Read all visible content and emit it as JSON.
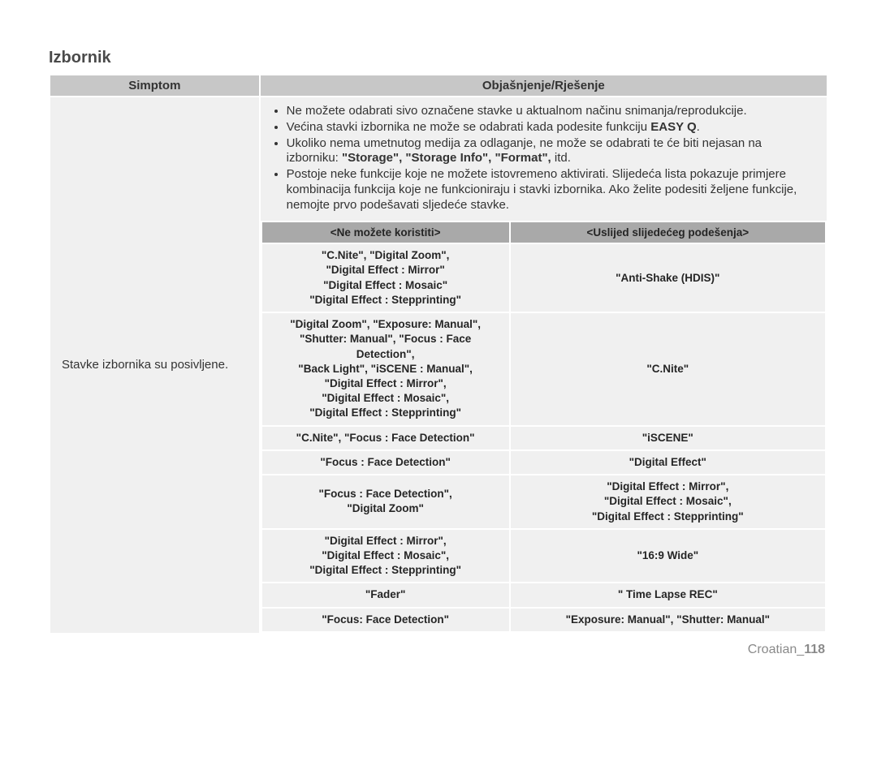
{
  "section_title": "Izbornik",
  "outer_headers": {
    "symptom": "Simptom",
    "explanation": "Objašnjenje/Rješenje"
  },
  "symptom_text": "Stavke izbornika su posivljene.",
  "bullets": [
    {
      "pre": "Ne možete odabrati sivo označene stavke u aktualnom načinu snimanja/reprodukcije."
    },
    {
      "pre": "Većina stavki izbornika ne može se odabrati kada podesite funkciju ",
      "bold": "EASY Q",
      "post": "."
    },
    {
      "pre": "Ukoliko nema umetnutog medija za odlaganje, ne može se odabrati te će biti nejasan na izborniku: ",
      "bold": "\"Storage\", \"Storage Info\", \"Format\",",
      "post": " itd."
    },
    {
      "pre": "Postoje neke funkcije koje ne možete istovremeno aktivirati. Slijedeća lista pokazuje primjere kombinacija funkcija koje ne funkcioniraju i stavki izbornika. Ako želite podesiti željene funkcije, nemojte prvo podešavati sljedeće stavke."
    }
  ],
  "inner_headers": {
    "cannot_use": "<Ne možete koristiti>",
    "due_to": "<Uslijed slijedećeg podešenja>"
  },
  "inner_rows": [
    {
      "left": "\"C.Nite\", \"Digital Zoom\",\n\"Digital Effect : Mirror\"\n\"Digital Effect : Mosaic\"\n\"Digital Effect : Stepprinting\"",
      "right": "\"Anti-Shake (HDIS)\""
    },
    {
      "left": "\"Digital Zoom\", \"Exposure: Manual\",\n\"Shutter: Manual\", \"Focus : Face\nDetection\",\n\"Back Light\", \"iSCENE : Manual\",\n\"Digital Effect : Mirror\",\n\"Digital Effect : Mosaic\",\n\"Digital Effect : Stepprinting\"",
      "right": "\"C.Nite\""
    },
    {
      "left": "\"C.Nite\", \"Focus : Face Detection\"",
      "right": "\"iSCENE\""
    },
    {
      "left": "\"Focus : Face Detection\"",
      "right": "\"Digital Effect\""
    },
    {
      "left": "\"Focus : Face Detection\",\n\"Digital Zoom\"",
      "right": "\"Digital Effect : Mirror\",\n\"Digital Effect : Mosaic\",\n\"Digital Effect : Stepprinting\""
    },
    {
      "left": "\"Digital Effect : Mirror\",\n\"Digital Effect : Mosaic\",\n\"Digital Effect : Stepprinting\"",
      "right": "\"16:9 Wide\""
    },
    {
      "left": "\"Fader\"",
      "right": "\" Time Lapse REC\""
    },
    {
      "left": "\"Focus: Face Detection\"",
      "right": "\"Exposure: Manual\",  \"Shutter: Manual\""
    }
  ],
  "footer": {
    "lang": "Croatian",
    "page": "118"
  }
}
